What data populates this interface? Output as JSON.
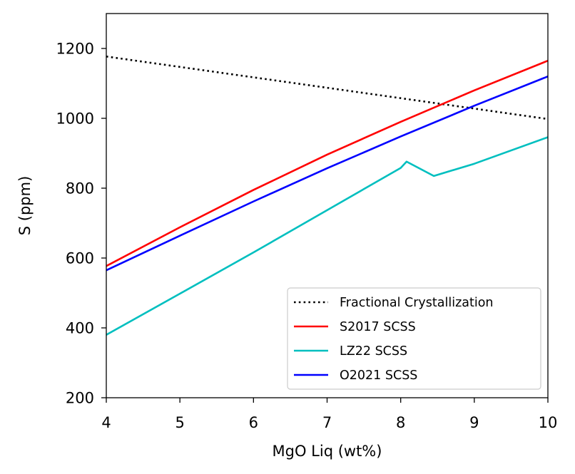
{
  "chart_data": {
    "type": "line",
    "title": "",
    "xlabel": "MgO Liq (wt%)",
    "ylabel": "S (ppm)",
    "xlim": [
      4,
      10
    ],
    "ylim": [
      200,
      1300
    ],
    "xticks": [
      4,
      5,
      6,
      7,
      8,
      9,
      10
    ],
    "yticks": [
      200,
      400,
      600,
      800,
      1000,
      1200
    ],
    "grid": false,
    "legend_position": "lower-right",
    "series": [
      {
        "name": "Fractional Crystallization",
        "color": "#000000",
        "style": "dotted",
        "x": [
          4,
          10
        ],
        "y": [
          1177,
          998
        ]
      },
      {
        "name": "S2017 SCSS",
        "color": "#ff0000",
        "style": "solid",
        "x": [
          4,
          5,
          6,
          7,
          8,
          9,
          10
        ],
        "y": [
          577,
          688,
          795,
          896,
          990,
          1080,
          1165
        ]
      },
      {
        "name": "LZ22 SCSS",
        "color": "#00bfbf",
        "style": "solid",
        "x": [
          4,
          5,
          6,
          7,
          8,
          8.08,
          8.45,
          9,
          10
        ],
        "y": [
          380,
          498,
          616,
          737,
          858,
          876,
          835,
          870,
          946
        ]
      },
      {
        "name": "O2021 SCSS",
        "color": "#0000ff",
        "style": "solid",
        "x": [
          4,
          5,
          6,
          7,
          8,
          9,
          10
        ],
        "y": [
          565,
          664,
          762,
          857,
          948,
          1036,
          1120
        ]
      }
    ]
  }
}
